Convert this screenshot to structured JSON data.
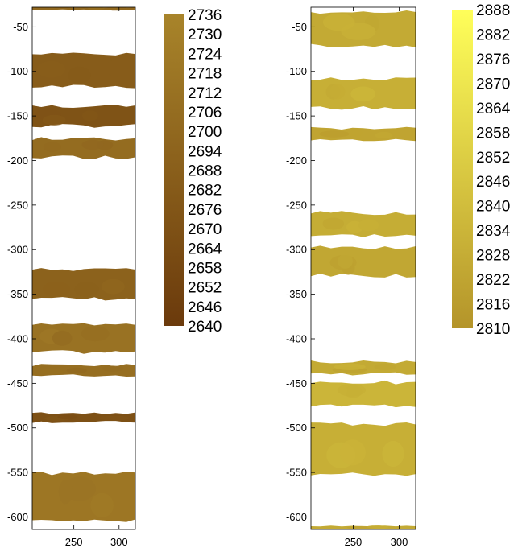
{
  "chart_data": [
    {
      "type": "heatmap",
      "title": "",
      "xlabel": "",
      "ylabel": "",
      "x_ticks": [
        250,
        300
      ],
      "y_ticks": [
        -50,
        -100,
        -150,
        -200,
        -250,
        -300,
        -350,
        -400,
        -450,
        -500,
        -550,
        -600
      ],
      "xlim": [
        204,
        318
      ],
      "ylim": [
        -614,
        -28
      ],
      "grid": false,
      "colorbar": {
        "ticks": [
          2736,
          2730,
          2724,
          2718,
          2712,
          2706,
          2700,
          2694,
          2688,
          2682,
          2676,
          2670,
          2664,
          2658,
          2652,
          2646,
          2640
        ],
        "range": [
          2640,
          2736
        ],
        "color_low": "#6b3a0c",
        "color_high": "#a8842a"
      },
      "bands": [
        {
          "y_top": -28,
          "y_bottom": -31,
          "value": 2700
        },
        {
          "y_top": -80,
          "y_bottom": -118,
          "value": 2684
        },
        {
          "y_top": -138,
          "y_bottom": -162,
          "value": 2672
        },
        {
          "y_top": -175,
          "y_bottom": -197,
          "value": 2705
        },
        {
          "y_top": -322,
          "y_bottom": -356,
          "value": 2692
        },
        {
          "y_top": -382,
          "y_bottom": -416,
          "value": 2712
        },
        {
          "y_top": -429,
          "y_bottom": -442,
          "value": 2708
        },
        {
          "y_top": -483,
          "y_bottom": -494,
          "value": 2668
        },
        {
          "y_top": -550,
          "y_bottom": -605,
          "value": 2718
        }
      ]
    },
    {
      "type": "heatmap",
      "title": "",
      "xlabel": "",
      "ylabel": "",
      "x_ticks": [
        250,
        300
      ],
      "y_ticks": [
        -50,
        -100,
        -150,
        -200,
        -250,
        -300,
        -350,
        -400,
        -450,
        -500,
        -550,
        -600
      ],
      "xlim": [
        204,
        318
      ],
      "ylim": [
        -614,
        -28
      ],
      "grid": false,
      "colorbar": {
        "ticks": [
          2888,
          2882,
          2876,
          2870,
          2864,
          2858,
          2852,
          2846,
          2840,
          2834,
          2828,
          2822,
          2816,
          2810
        ],
        "range": [
          2810,
          2888
        ],
        "color_low": "#b4942a",
        "color_high": "#ffff5a"
      },
      "bands": [
        {
          "y_top": -33,
          "y_bottom": -72,
          "value": 2826
        },
        {
          "y_top": -108,
          "y_bottom": -142,
          "value": 2830
        },
        {
          "y_top": -163,
          "y_bottom": -178,
          "value": 2822
        },
        {
          "y_top": -258,
          "y_bottom": -285,
          "value": 2828
        },
        {
          "y_top": -297,
          "y_bottom": -330,
          "value": 2824
        },
        {
          "y_top": -425,
          "y_bottom": -440,
          "value": 2826
        },
        {
          "y_top": -448,
          "y_bottom": -476,
          "value": 2834
        },
        {
          "y_top": -495,
          "y_bottom": -553,
          "value": 2830
        },
        {
          "y_top": -610,
          "y_bottom": -614,
          "value": 2826
        }
      ]
    }
  ]
}
